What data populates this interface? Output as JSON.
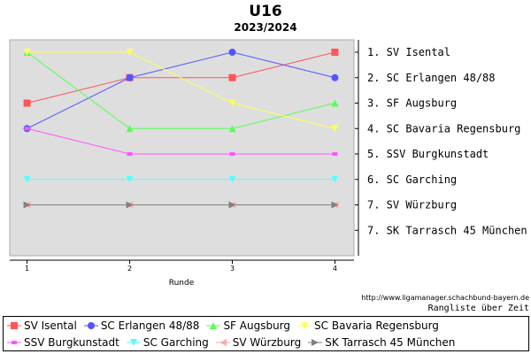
{
  "chart_data": {
    "type": "line",
    "title": "U16",
    "subtitle": "2023/2024",
    "xlabel": "Runde",
    "ylabel": "",
    "x": [
      1,
      2,
      3,
      4
    ],
    "ylim": [
      1,
      8
    ],
    "y_inverted": true,
    "grid": false,
    "legend_placement": "bottom",
    "right_labels": [
      "1. SV Isental",
      "2. SC Erlangen 48/88",
      "3. SF Augsburg",
      "4. SC Bavaria Regensburg",
      "5. SSV Burgkunstadt",
      "6. SC Garching",
      "7. SV Würzburg",
      "7. SK Tarrasch 45 München"
    ],
    "series": [
      {
        "name": "SV Isental",
        "values": [
          3,
          2,
          2,
          1
        ],
        "color": "#ff5555",
        "marker": "square"
      },
      {
        "name": "SC Erlangen 48/88",
        "values": [
          4,
          2,
          1,
          2
        ],
        "color": "#5555ff",
        "marker": "circle"
      },
      {
        "name": "SF Augsburg",
        "values": [
          1,
          4,
          4,
          3
        ],
        "color": "#55ff55",
        "marker": "triangle-up"
      },
      {
        "name": "SC Bavaria Regensburg",
        "values": [
          1,
          1,
          3,
          4
        ],
        "color": "#ffff55",
        "marker": "triangle-down"
      },
      {
        "name": "SSV Burgkunstadt",
        "values": [
          4,
          5,
          5,
          5
        ],
        "color": "#ff55ff",
        "marker": "square-small"
      },
      {
        "name": "SC Garching",
        "values": [
          6,
          6,
          6,
          6
        ],
        "color": "#55ffff",
        "marker": "triangle-down"
      },
      {
        "name": "SV Würzburg",
        "values": [
          7,
          7,
          7,
          7
        ],
        "color": "#ffaaaa",
        "marker": "triangle-left"
      },
      {
        "name": "SK Tarrasch 45 München",
        "values": [
          7,
          7,
          7,
          7
        ],
        "color": "#808080",
        "marker": "triangle-right"
      }
    ]
  },
  "credit": "http://www.ligamanager.schachbund-bayern.de",
  "footnote": "Rangliste über Zeit"
}
